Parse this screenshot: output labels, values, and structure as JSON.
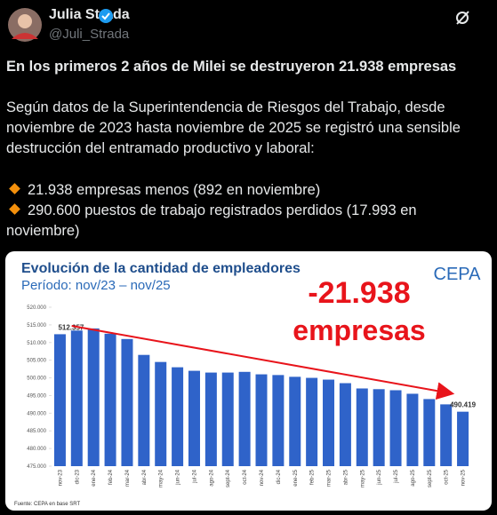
{
  "tweet": {
    "author": {
      "name": "Julia Strada",
      "handle": "@Juli_Strada"
    },
    "headline": "En los primeros 2 años de Milei se destruyeron 21.938 empresas",
    "body": "Según datos de la Superintendencia de Riesgos del Trabajo, desde noviembre de 2023 hasta noviembre de 2025 se registró una sensible destrucción del entramado productivo y laboral:",
    "bullets": [
      "21.938 empresas menos (892 en noviembre)",
      "290.600 puestos de trabajo registrados perdidos (17.993 en noviembre)"
    ]
  },
  "chart_data": {
    "type": "bar",
    "title": "Evolución de la cantidad de empleadores",
    "subtitle": "Período: nov/23 – nov/25",
    "logo": "CEPA",
    "source": "Fuente: CEPA en base SRT",
    "annotation": [
      "-21.938",
      "empresas"
    ],
    "color": "#2f63c9",
    "categories": [
      "nov-23",
      "dic-23",
      "ene-24",
      "feb-24",
      "mar-24",
      "abr-24",
      "may-24",
      "jun-24",
      "jul-24",
      "ago-24",
      "sept-24",
      "oct-24",
      "nov-24",
      "dic-24",
      "ene-25",
      "feb-25",
      "mar-25",
      "abr-25",
      "may-25",
      "jun-25",
      "jul-25",
      "ago-25",
      "sept-25",
      "oct-25",
      "nov-25"
    ],
    "values": [
      512357,
      513400,
      514000,
      512500,
      511000,
      506500,
      504500,
      503000,
      502000,
      501500,
      501500,
      501700,
      501000,
      500800,
      500300,
      500000,
      499500,
      498500,
      497000,
      496800,
      496500,
      495500,
      494000,
      492500,
      490419
    ],
    "value_labels": [
      "512.357",
      null,
      null,
      null,
      null,
      null,
      null,
      null,
      null,
      null,
      null,
      null,
      null,
      null,
      null,
      null,
      null,
      null,
      null,
      null,
      null,
      null,
      null,
      null,
      "490.419"
    ],
    "ylim": [
      475000,
      520000
    ],
    "yticks": [
      {
        "value": 475000,
        "label": "475.000"
      },
      {
        "value": 480000,
        "label": "480.000"
      },
      {
        "value": 485000,
        "label": "485.000"
      },
      {
        "value": 490000,
        "label": "490.000"
      },
      {
        "value": 495000,
        "label": "495.000"
      },
      {
        "value": 500000,
        "label": "500.000"
      },
      {
        "value": 505000,
        "label": "505.000"
      },
      {
        "value": 510000,
        "label": "510.000"
      },
      {
        "value": 515000,
        "label": "515.000"
      },
      {
        "value": 520000,
        "label": "520.000"
      }
    ],
    "grid": false
  }
}
